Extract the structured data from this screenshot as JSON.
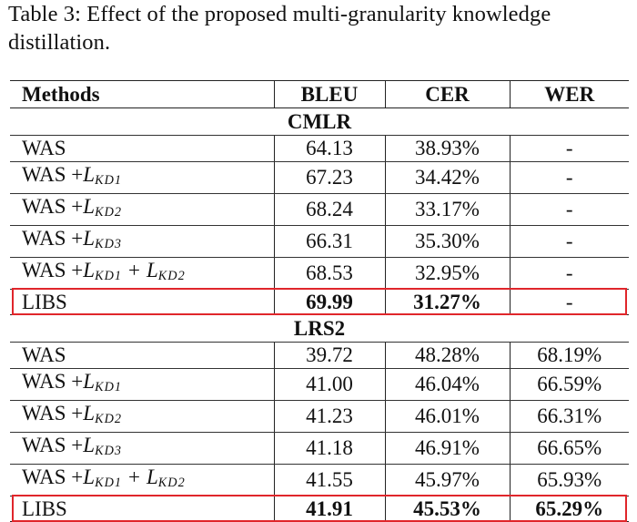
{
  "caption": "Table 3: Effect of the proposed multi-granularity knowledge distillation.",
  "header": {
    "methods": "Methods",
    "bleu": "BLEU",
    "cer": "CER",
    "wer": "WER"
  },
  "sections": [
    {
      "name": "CMLR",
      "rows": [
        {
          "base": "WAS",
          "terms": [],
          "bleu": "64.13",
          "cer": "38.93%",
          "wer": "-"
        },
        {
          "base": "WAS +",
          "terms": [
            "KD1"
          ],
          "bleu": "67.23",
          "cer": "34.42%",
          "wer": "-"
        },
        {
          "base": "WAS +",
          "terms": [
            "KD2"
          ],
          "bleu": "68.24",
          "cer": "33.17%",
          "wer": "-"
        },
        {
          "base": "WAS +",
          "terms": [
            "KD3"
          ],
          "bleu": "66.31",
          "cer": "35.30%",
          "wer": "-"
        },
        {
          "base": "WAS +",
          "terms": [
            "KD1",
            "KD2"
          ],
          "bleu": "68.53",
          "cer": "32.95%",
          "wer": "-"
        },
        {
          "base": "LIBS",
          "terms": [],
          "bleu": "69.99",
          "cer": "31.27%",
          "wer": "-",
          "bold": true,
          "highlight": true
        }
      ]
    },
    {
      "name": "LRS2",
      "rows": [
        {
          "base": "WAS",
          "terms": [],
          "bleu": "39.72",
          "cer": "48.28%",
          "wer": "68.19%"
        },
        {
          "base": "WAS +",
          "terms": [
            "KD1"
          ],
          "bleu": "41.00",
          "cer": "46.04%",
          "wer": "66.59%"
        },
        {
          "base": "WAS +",
          "terms": [
            "KD2"
          ],
          "bleu": "41.23",
          "cer": "46.01%",
          "wer": "66.31%"
        },
        {
          "base": "WAS +",
          "terms": [
            "KD3"
          ],
          "bleu": "41.18",
          "cer": "46.91%",
          "wer": "66.65%"
        },
        {
          "base": "WAS +",
          "terms": [
            "KD1",
            "KD2"
          ],
          "bleu": "41.55",
          "cer": "45.97%",
          "wer": "65.93%"
        },
        {
          "base": "LIBS",
          "terms": [],
          "bleu": "41.91",
          "cer": "45.53%",
          "wer": "65.29%",
          "bold": true,
          "highlight": true
        }
      ]
    }
  ],
  "math": {
    "symbol": "L",
    "plus": "+"
  },
  "colors": {
    "highlight": "#e0262b",
    "text": "#111111",
    "rule": "#222222"
  }
}
